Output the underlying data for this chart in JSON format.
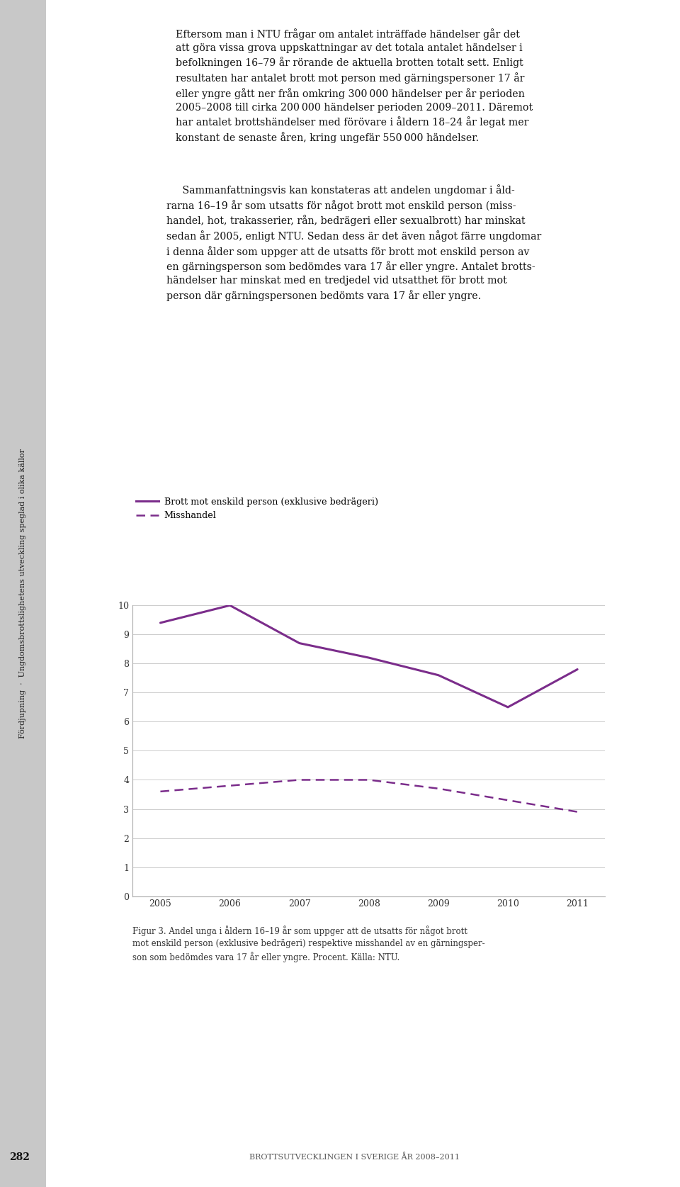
{
  "years": [
    2005,
    2006,
    2007,
    2008,
    2009,
    2010,
    2011
  ],
  "solid_line": [
    9.4,
    10.0,
    8.7,
    8.2,
    7.6,
    6.5,
    7.8
  ],
  "dashed_line": [
    3.6,
    3.8,
    4.0,
    4.0,
    3.7,
    3.3,
    2.9
  ],
  "line_color": "#7B2D8B",
  "ylim": [
    0,
    10
  ],
  "yticks": [
    0,
    1,
    2,
    3,
    4,
    5,
    6,
    7,
    8,
    9,
    10
  ],
  "xticks": [
    2005,
    2006,
    2007,
    2008,
    2009,
    2010,
    2011
  ],
  "legend_solid": "Brott mot enskild person (exklusive bedrägeri)",
  "legend_dashed": "Misshandel",
  "bg_color": "#ffffff",
  "grid_color": "#cccccc",
  "caption_text": "Figur 3. Andel unga i åldern 16–19 år som uppger att de utsatts för något brott\nmot enskild person (exklusive bedrägeri) respektive misshandel av en gärningsper-\nson som bedömdes vara 17 år eller yngre. Procent. Källa: NTU.",
  "page_text": "282",
  "footer_text": "BROTTSUTVECKLINGEN I SVERIGE ÅR 2008–2011",
  "body_text_1": "Eftersom man i NTU frågar om antalet inträffade händelser går det\natt göra vissa grova uppskattningar av det totala antalet händelser i\nbefolkningen 16–79 år rörande de aktuella brotten totalt sett. Enligt\nresultaten har antalet brott mot person med gärningspersoner 17 år\neller yngre gått ner från omkring 300 000 händelser per år perioden\n2005–2008 till cirka 200 000 händelser perioden 2009–2011. Däremot\nhar antalet brottshändelser med förövare i åldern 18–24 år legat mer\nkonstant de senaste åren, kring ungefär 550 000 händelser.",
  "body_text_2": "     Sammanfattningsvis kan konstateras att andelen ungdomar i åld-\nrarna 16–19 år som utsatts för något brott mot enskild person (miss-\nhandel, hot, trakasserier, rån, bedrägeri eller sexualbrott) har minskat\nsedan år 2005, enligt NTU. Sedan dess är det även något färre ungdomar\ni denna ålder som uppger att de utsatts för brott mot enskild person av\nen gärningsperson som bedömdes vara 17 år eller yngre. Antalet brotts-\nhändelser har minskat med en tredjedel vid utsatthet för brott mot\nperson där gärningspersonen bedömts vara 17 år eller yngre.",
  "sidebar_text": "Fördjupning  ·  Ungdomsbrottslighetens utveckling speglad i olika källor"
}
